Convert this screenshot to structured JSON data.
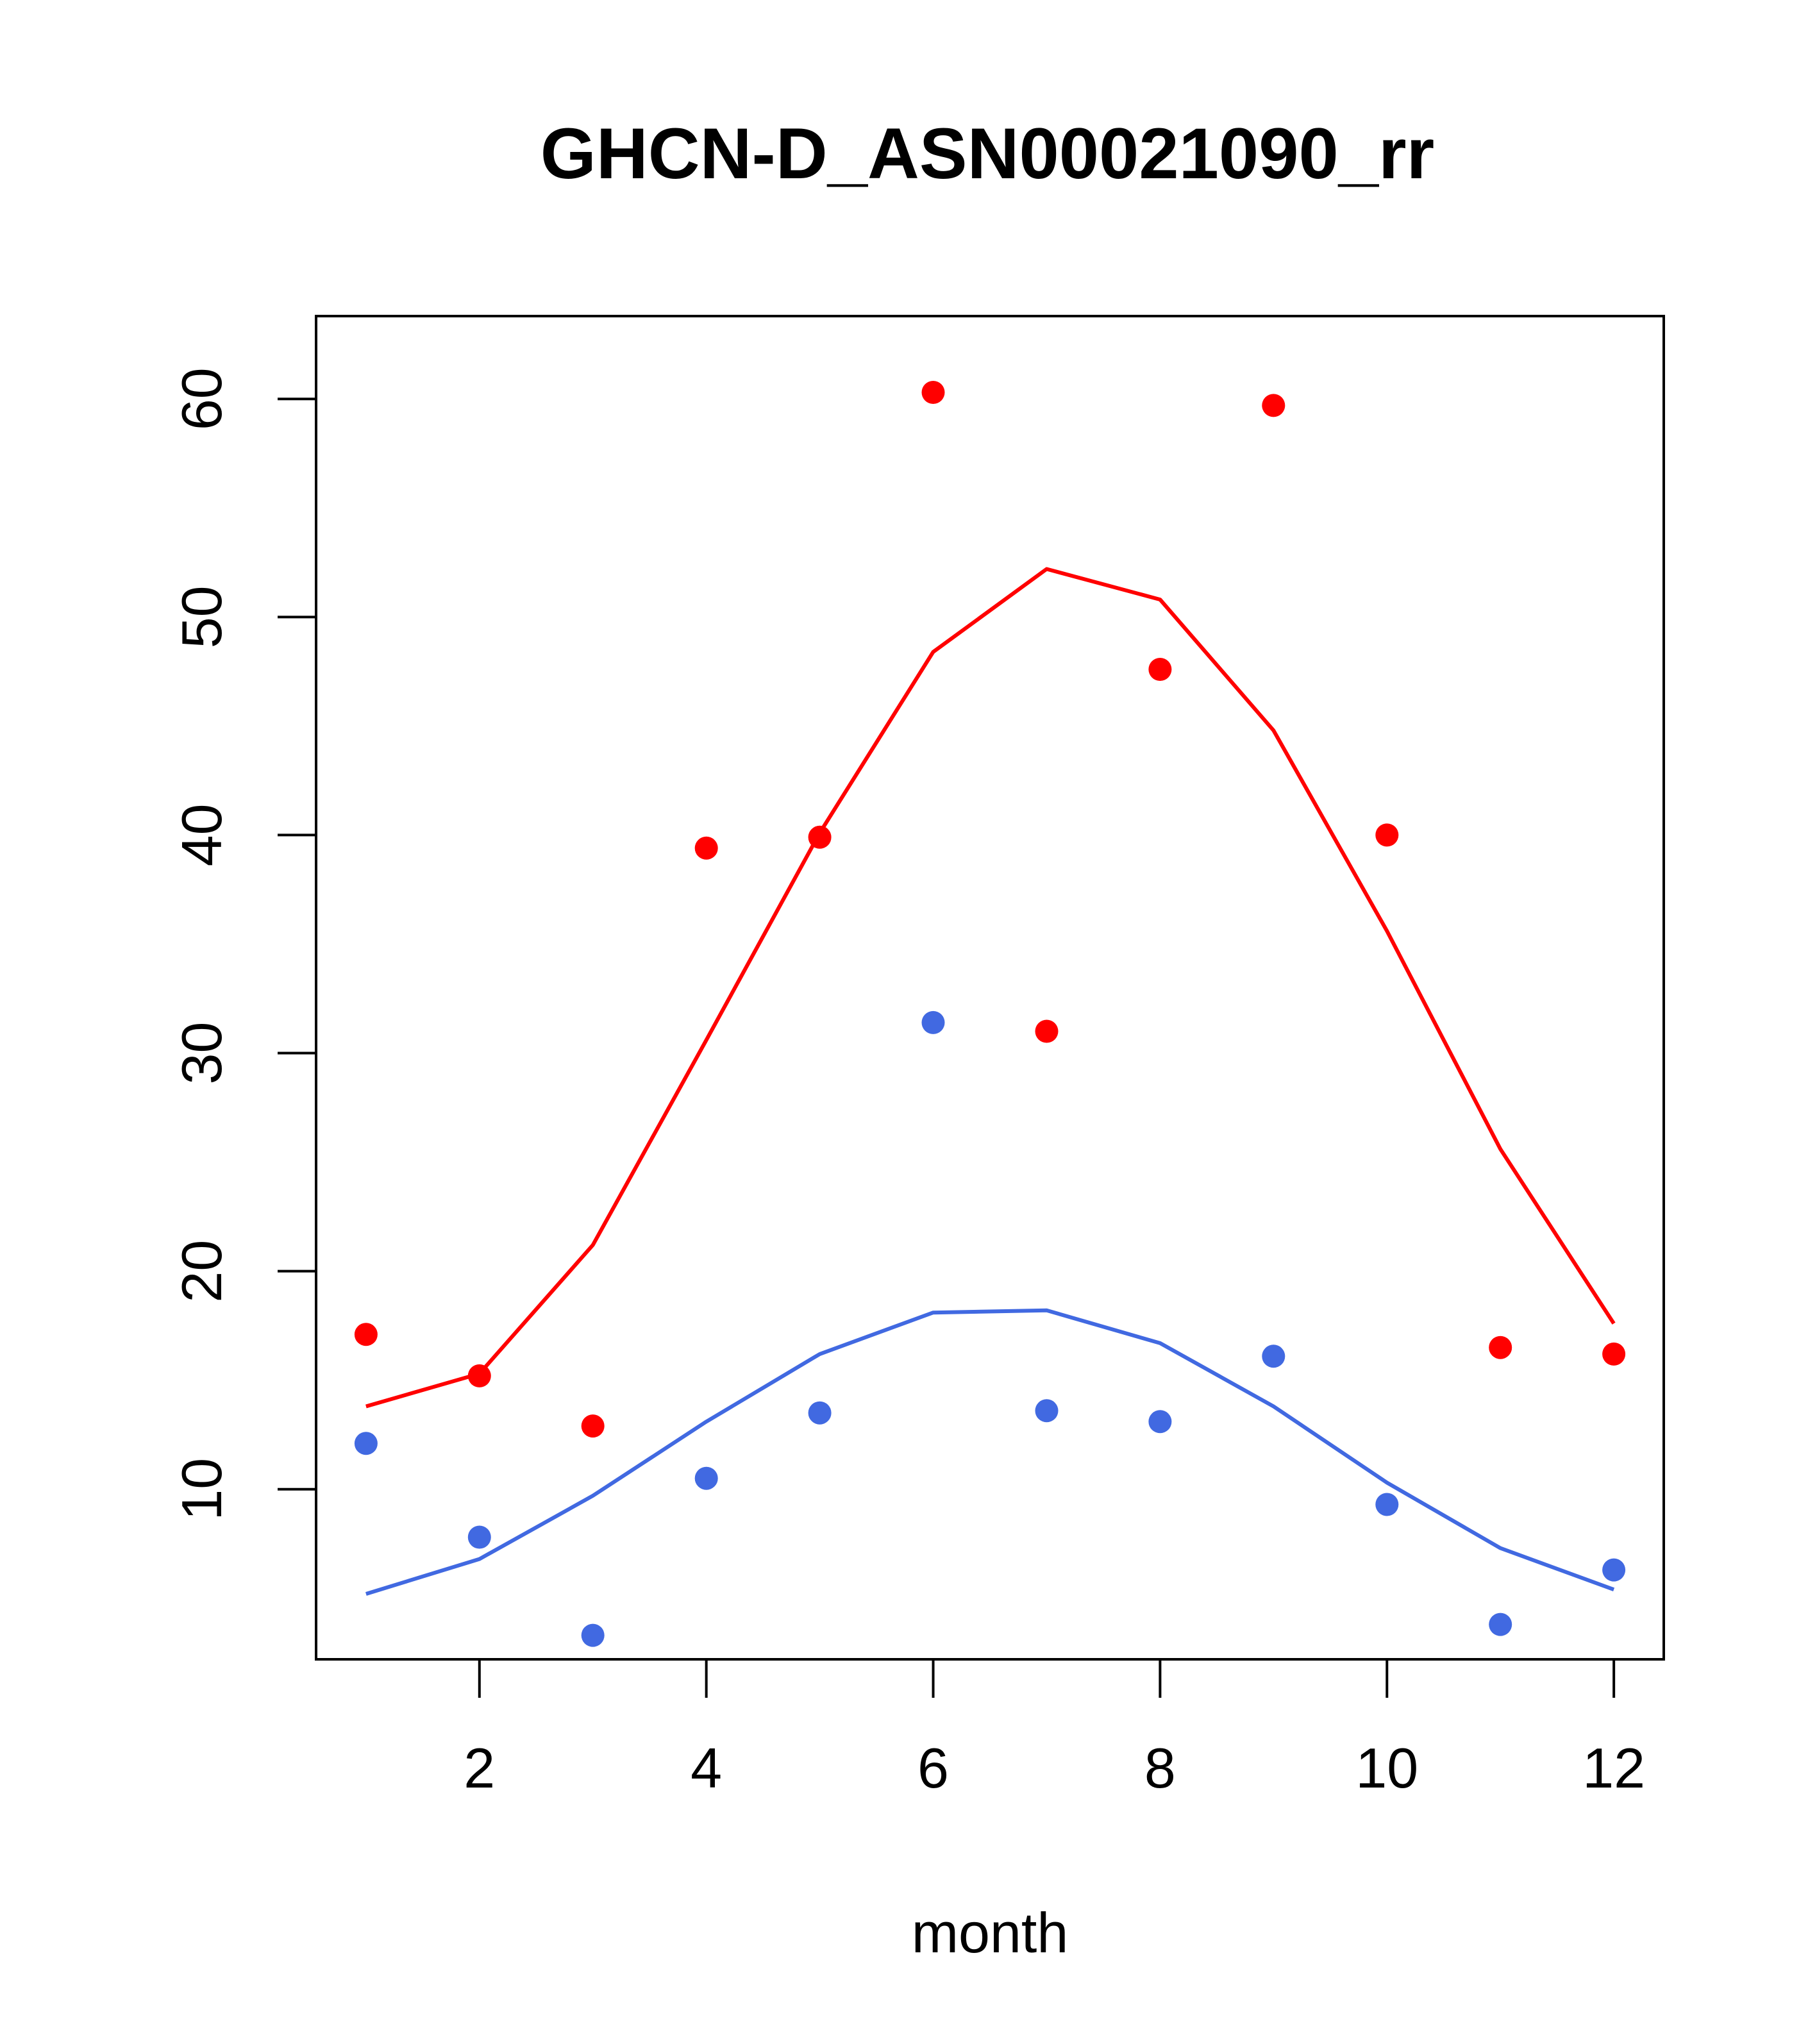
{
  "chart_data": {
    "type": "scatter",
    "title": "GHCN-D_ASN00021090_rr",
    "xlabel": "month",
    "ylabel": "",
    "xlim": [
      0.56,
      12.44
    ],
    "ylim": [
      2.2,
      63.8
    ],
    "x_ticks": [
      2,
      4,
      6,
      8,
      10,
      12
    ],
    "y_ticks": [
      10,
      20,
      30,
      40,
      50,
      60
    ],
    "grid": false,
    "legend": "none",
    "months": [
      1,
      2,
      3,
      4,
      5,
      6,
      7,
      8,
      9,
      10,
      11,
      12
    ],
    "series": [
      {
        "color": "#ff0000",
        "points": [
          17.1,
          15.2,
          12.9,
          39.4,
          39.9,
          60.3,
          31.0,
          47.6,
          59.7,
          40.0,
          16.5,
          16.2
        ],
        "line": [
          13.8,
          15.3,
          21.2,
          30.6,
          40.1,
          48.4,
          52.2,
          50.8,
          44.8,
          35.6,
          25.6,
          17.6
        ]
      },
      {
        "color": "#4169e1",
        "points": [
          12.1,
          7.8,
          3.3,
          10.5,
          13.5,
          31.4,
          13.6,
          13.1,
          16.1,
          9.3,
          3.8,
          6.3
        ],
        "line": [
          5.2,
          6.8,
          9.7,
          13.1,
          16.2,
          18.1,
          18.2,
          16.7,
          13.8,
          10.3,
          7.3,
          5.4
        ]
      }
    ]
  }
}
